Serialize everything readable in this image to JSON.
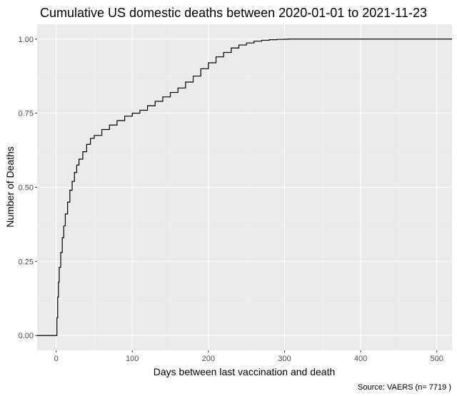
{
  "chart_data": {
    "type": "line",
    "step": true,
    "title": "Cumulative US domestic deaths between 2020-01-01 to 2021-11-23",
    "xlabel": "Days between last vaccination and death",
    "ylabel": "Number of Deaths",
    "caption": "Source: VAERS (n= 7719 )",
    "xlim": [
      -25,
      520
    ],
    "ylim": [
      -0.05,
      1.05
    ],
    "x_ticks": [
      0,
      100,
      200,
      300,
      400,
      500
    ],
    "x_tick_labels": [
      "0",
      "100",
      "200",
      "300",
      "400",
      "500"
    ],
    "y_ticks": [
      0,
      0.25,
      0.5,
      0.75,
      1.0
    ],
    "y_tick_labels": [
      "0.00",
      "0.25",
      "0.50",
      "0.75",
      "1.00"
    ],
    "grid": true,
    "legend": "none",
    "series": [
      {
        "line_color": "#000000",
        "x": [
          -25,
          0,
          1,
          2,
          3,
          4,
          6,
          8,
          10,
          12,
          15,
          18,
          21,
          24,
          27,
          30,
          35,
          40,
          45,
          50,
          60,
          70,
          80,
          90,
          100,
          110,
          120,
          130,
          140,
          150,
          160,
          170,
          180,
          190,
          200,
          210,
          220,
          230,
          240,
          250,
          260,
          270,
          280,
          290,
          300,
          305,
          320,
          520
        ],
        "y": [
          0,
          0,
          0.06,
          0.13,
          0.18,
          0.23,
          0.28,
          0.33,
          0.37,
          0.41,
          0.45,
          0.49,
          0.52,
          0.55,
          0.575,
          0.595,
          0.62,
          0.645,
          0.665,
          0.675,
          0.695,
          0.71,
          0.725,
          0.74,
          0.75,
          0.76,
          0.775,
          0.79,
          0.805,
          0.82,
          0.835,
          0.855,
          0.875,
          0.9,
          0.92,
          0.94,
          0.955,
          0.97,
          0.98,
          0.987,
          0.993,
          0.996,
          0.998,
          0.999,
          0.9995,
          1.0,
          1.0,
          1.0
        ]
      }
    ]
  },
  "colors": {
    "panel_background": "#EBEBEB",
    "major_grid": "#FFFFFF",
    "minor_grid": "#F3F3F3",
    "tick_label": "#4D4D4D",
    "tick_mark": "#333333"
  }
}
